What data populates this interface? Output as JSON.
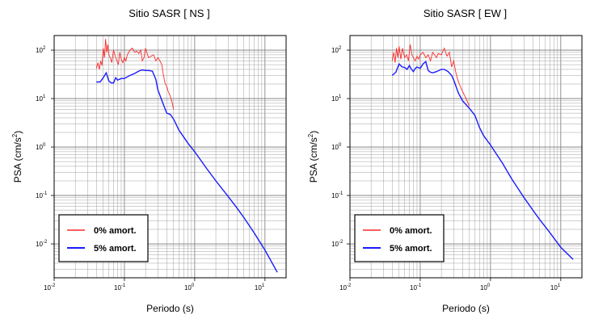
{
  "chart_data": [
    {
      "type": "line",
      "title": "Sitio SASR [ NS ]",
      "xlabel": "Periodo (s)",
      "ylabel_base": "PSA (cm/s",
      "ylabel_sup": "2",
      "ylabel_end": ")",
      "x_scale": "log",
      "y_scale": "log",
      "xlim": [
        0.01,
        20
      ],
      "ylim": [
        0.002,
        200
      ],
      "grid": true,
      "legend_position": "bottom-left",
      "x_ticks": [
        {
          "base": "10",
          "exp": "-2",
          "value": 0.01
        },
        {
          "base": "10",
          "exp": "-1",
          "value": 0.1
        },
        {
          "base": "10",
          "exp": "0",
          "value": 1
        },
        {
          "base": "10",
          "exp": "1",
          "value": 10
        }
      ],
      "y_ticks": [
        {
          "base": "10",
          "exp": "-2",
          "value": 0.01
        },
        {
          "base": "10",
          "exp": "-1",
          "value": 0.1
        },
        {
          "base": "10",
          "exp": "0",
          "value": 1
        },
        {
          "base": "10",
          "exp": "1",
          "value": 10
        },
        {
          "base": "10",
          "exp": "2",
          "value": 100
        }
      ],
      "series": [
        {
          "name": "0% amort.",
          "color": "#ff2a2a",
          "x": [
            0.04,
            0.042,
            0.044,
            0.046,
            0.048,
            0.05,
            0.052,
            0.054,
            0.056,
            0.058,
            0.06,
            0.063,
            0.066,
            0.07,
            0.074,
            0.078,
            0.082,
            0.086,
            0.09,
            0.095,
            0.1,
            0.105,
            0.11,
            0.12,
            0.13,
            0.14,
            0.15,
            0.16,
            0.17,
            0.18,
            0.19,
            0.2,
            0.22,
            0.24,
            0.26,
            0.28,
            0.3,
            0.32,
            0.34,
            0.36,
            0.38,
            0.4,
            0.42,
            0.44,
            0.46,
            0.48,
            0.5
          ],
          "y": [
            42,
            55,
            40,
            60,
            48,
            110,
            70,
            170,
            90,
            130,
            80,
            70,
            55,
            100,
            75,
            60,
            50,
            90,
            65,
            55,
            70,
            60,
            80,
            100,
            110,
            90,
            95,
            85,
            100,
            60,
            70,
            110,
            70,
            75,
            80,
            60,
            70,
            60,
            50,
            30,
            20,
            18,
            14,
            12,
            10,
            8,
            6
          ]
        },
        {
          "name": "5% amort.",
          "color": "#1a1aff",
          "x": [
            0.04,
            0.045,
            0.05,
            0.055,
            0.06,
            0.065,
            0.07,
            0.075,
            0.08,
            0.09,
            0.1,
            0.11,
            0.12,
            0.14,
            0.16,
            0.18,
            0.2,
            0.22,
            0.25,
            0.28,
            0.3,
            0.35,
            0.4,
            0.45,
            0.5,
            0.6,
            0.7,
            0.8,
            1,
            1.5,
            2,
            3,
            4,
            5,
            7,
            10,
            15
          ],
          "y": [
            22,
            22,
            27,
            34,
            23,
            21,
            21,
            27,
            24,
            26,
            26,
            28,
            30,
            33,
            37,
            39,
            38,
            38,
            37,
            25,
            15,
            8.3,
            5,
            4.7,
            3.8,
            2.2,
            1.6,
            1.2,
            0.8,
            0.35,
            0.2,
            0.095,
            0.055,
            0.035,
            0.017,
            0.0075,
            0.0026
          ]
        }
      ]
    },
    {
      "type": "line",
      "title": "Sitio SASR [ EW ]",
      "xlabel": "Periodo (s)",
      "ylabel_base": "PSA (cm/s",
      "ylabel_sup": "2",
      "ylabel_end": ")",
      "x_scale": "log",
      "y_scale": "log",
      "xlim": [
        0.01,
        20
      ],
      "ylim": [
        0.002,
        200
      ],
      "grid": true,
      "legend_position": "bottom-left",
      "x_ticks": [
        {
          "base": "10",
          "exp": "-2",
          "value": 0.01
        },
        {
          "base": "10",
          "exp": "-1",
          "value": 0.1
        },
        {
          "base": "10",
          "exp": "0",
          "value": 1
        },
        {
          "base": "10",
          "exp": "1",
          "value": 10
        }
      ],
      "y_ticks": [
        {
          "base": "10",
          "exp": "-2",
          "value": 0.01
        },
        {
          "base": "10",
          "exp": "-1",
          "value": 0.1
        },
        {
          "base": "10",
          "exp": "0",
          "value": 1
        },
        {
          "base": "10",
          "exp": "1",
          "value": 10
        },
        {
          "base": "10",
          "exp": "2",
          "value": 100
        }
      ],
      "series": [
        {
          "name": "0% amort.",
          "color": "#ff2a2a",
          "x": [
            0.04,
            0.042,
            0.044,
            0.046,
            0.048,
            0.05,
            0.053,
            0.056,
            0.06,
            0.064,
            0.068,
            0.072,
            0.076,
            0.08,
            0.085,
            0.09,
            0.095,
            0.1,
            0.11,
            0.12,
            0.13,
            0.14,
            0.15,
            0.16,
            0.17,
            0.18,
            0.2,
            0.22,
            0.24,
            0.26,
            0.28,
            0.3,
            0.32,
            0.34,
            0.36,
            0.4,
            0.45,
            0.5
          ],
          "y": [
            60,
            90,
            55,
            110,
            70,
            120,
            65,
            110,
            70,
            80,
            60,
            130,
            80,
            70,
            60,
            75,
            65,
            80,
            90,
            70,
            80,
            60,
            90,
            80,
            70,
            85,
            80,
            110,
            75,
            90,
            45,
            60,
            35,
            25,
            20,
            14,
            10,
            7
          ]
        },
        {
          "name": "5% amort.",
          "color": "#1a1aff",
          "x": [
            0.04,
            0.045,
            0.05,
            0.055,
            0.06,
            0.065,
            0.07,
            0.075,
            0.08,
            0.085,
            0.09,
            0.1,
            0.11,
            0.12,
            0.13,
            0.14,
            0.15,
            0.17,
            0.2,
            0.22,
            0.25,
            0.28,
            0.3,
            0.35,
            0.4,
            0.45,
            0.5,
            0.6,
            0.7,
            0.8,
            1,
            1.5,
            2,
            3,
            4,
            5,
            7,
            10,
            15
          ],
          "y": [
            30,
            35,
            52,
            45,
            44,
            40,
            48,
            40,
            36,
            42,
            45,
            42,
            52,
            58,
            38,
            35,
            34,
            36,
            40,
            40,
            36,
            30,
            24,
            13,
            9,
            7.5,
            6.3,
            4.5,
            2.5,
            1.7,
            1.1,
            0.45,
            0.22,
            0.09,
            0.05,
            0.032,
            0.017,
            0.0085,
            0.0048
          ]
        }
      ]
    }
  ]
}
